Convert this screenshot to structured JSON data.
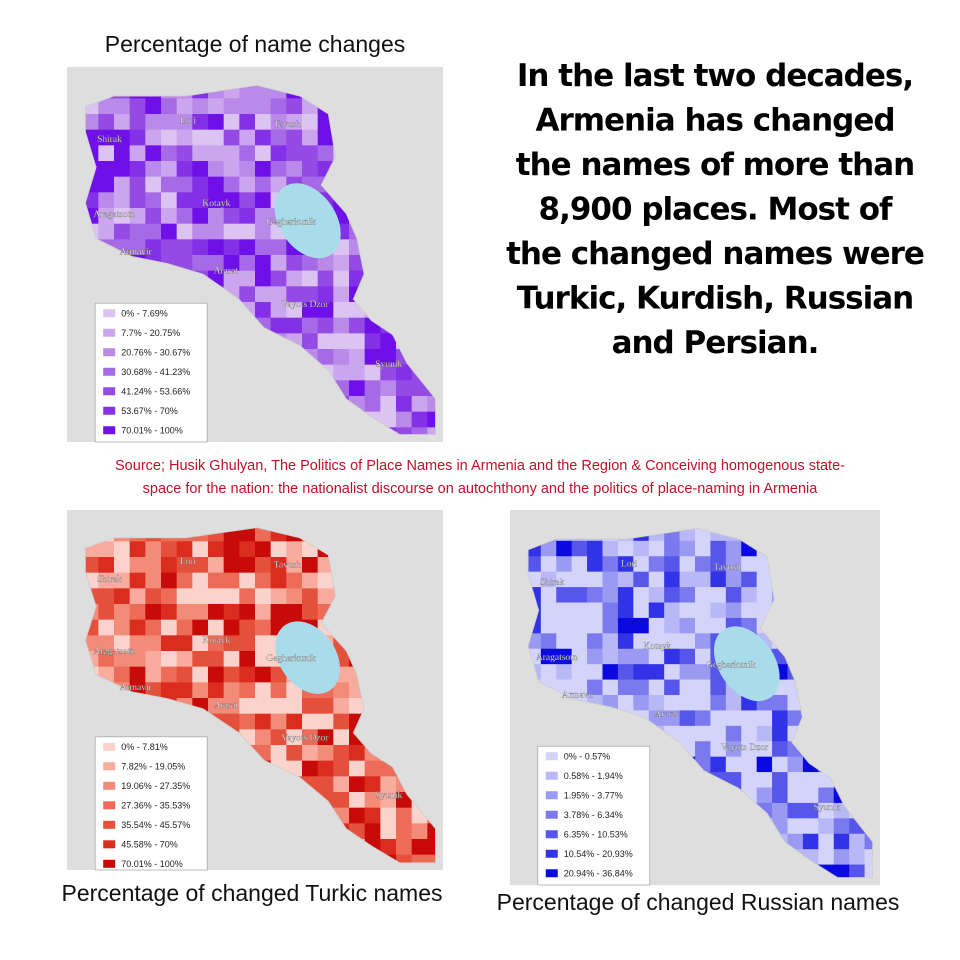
{
  "headline": [
    "In the last two decades,",
    "Armenia has changed",
    "the names of more than",
    "8,900 places. Most of",
    "the changed names were",
    "Turkic, Kurdish, Russian",
    "and Persian."
  ],
  "source": [
    "Source; Husik Ghulyan, The Politics of Place Names in Armenia and the Region & Conceiving homogenous state-",
    "space for the nation: the nationalist discourse on autochthony and the politics of place-naming in Armenia"
  ],
  "maps": [
    {
      "title": "Percentage of name changes",
      "regions": [
        "Lori",
        "Tavush",
        "Shirak",
        "Aragatsotn",
        "Kotayk",
        "Gegharkunik",
        "Armavir",
        "Ararat",
        "Vayots Dzor",
        "Syunik"
      ],
      "legend": [
        {
          "label": "0% - 7.69%",
          "color": "#dcc4f2"
        },
        {
          "label": "7.7% - 20.75%",
          "color": "#cba6ee"
        },
        {
          "label": "20.76% - 30.67%",
          "color": "#b98ae9"
        },
        {
          "label": "30.68% - 41.23%",
          "color": "#a66ae6"
        },
        {
          "label": "41.24% - 53.66%",
          "color": "#944ae4"
        },
        {
          "label": "53.67% - 70%",
          "color": "#8430e6"
        },
        {
          "label": "70.01% - 100%",
          "color": "#7010e8"
        }
      ]
    },
    {
      "title": "Percentage of changed Turkic names",
      "regions": [
        "Lori",
        "Tavush",
        "Shirak",
        "Aragatsotn",
        "Kotayk",
        "Gegharkunik",
        "Armavir",
        "Ararat",
        "Vayots Dzor",
        "Syunik"
      ],
      "legend": [
        {
          "label": "0% - 7.81%",
          "color": "#fcd3cc"
        },
        {
          "label": "7.82% - 19.05%",
          "color": "#f9ab9e"
        },
        {
          "label": "19.06% - 27.35%",
          "color": "#f38b79"
        },
        {
          "label": "27.36% - 35.53%",
          "color": "#ec6c58"
        },
        {
          "label": "35.54% - 45.57%",
          "color": "#e4503c"
        },
        {
          "label": "45.58% - 70%",
          "color": "#db2c20"
        },
        {
          "label": "70.01% - 100%",
          "color": "#c80a08"
        }
      ]
    },
    {
      "title": "Percentage of changed Russian names",
      "regions": [
        "Lori",
        "Tavush",
        "Shirak",
        "Aragatsotn",
        "Kotayk",
        "Gegharkunik",
        "Armavir",
        "Ararat",
        "Vayots Dzor",
        "Syunik"
      ],
      "legend": [
        {
          "label": "0% - 0.57%",
          "color": "#d4d4fa"
        },
        {
          "label": "0.58% - 1.94%",
          "color": "#b8b8f6"
        },
        {
          "label": "1.95% - 3.77%",
          "color": "#9a9af2"
        },
        {
          "label": "3.78% - 6.34%",
          "color": "#7a7aee"
        },
        {
          "label": "6.35% - 10.53%",
          "color": "#5656ea"
        },
        {
          "label": "10.54% - 20.93%",
          "color": "#3232e6"
        },
        {
          "label": "20.94% - 36.84%",
          "color": "#0a0ae0"
        }
      ]
    }
  ]
}
